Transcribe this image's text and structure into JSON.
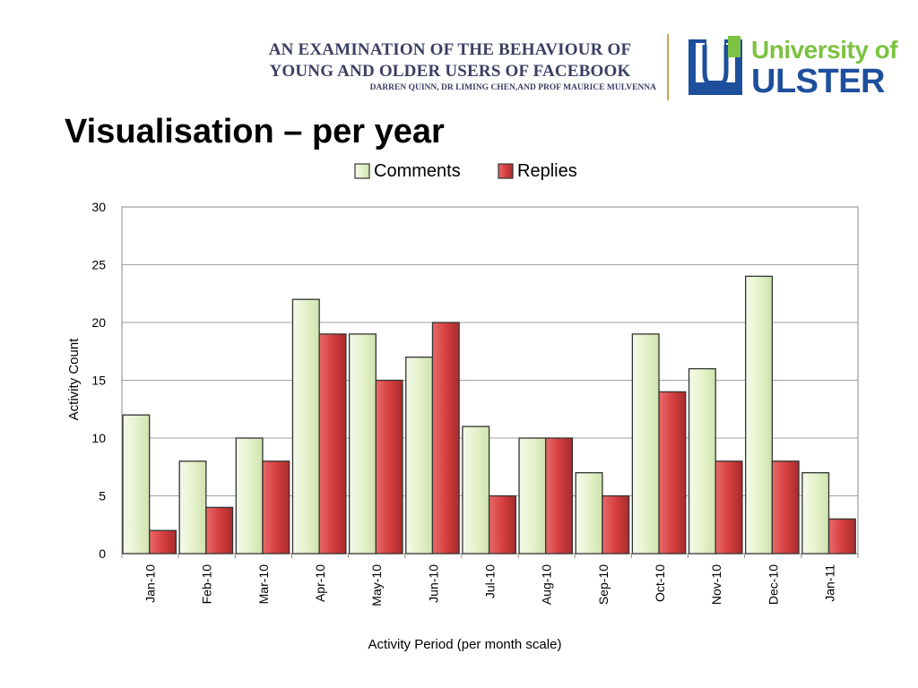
{
  "header": {
    "line1": "AN EXAMINATION OF THE BEHAVIOUR OF",
    "line2": "YOUNG AND OLDER USERS OF FACEBOOK",
    "authors": "DARREN QUINN, DR LIMING CHEN,AND PROF MAURICE MULVENNA"
  },
  "logo": {
    "line1": "University of",
    "line2": "ULSTER"
  },
  "slide": {
    "title": "Visualisation – per year"
  },
  "colors": {
    "comments_fill": "#e6f2cc",
    "replies_fill": "#d63f3f",
    "bar_stroke": "#333333",
    "grid": "#a0a0a0"
  },
  "chart_data": {
    "type": "bar",
    "title": "",
    "xlabel": "Activity Period (per month scale)",
    "ylabel": "Activity Count",
    "ylim": [
      0,
      30
    ],
    "yticks": [
      0,
      5,
      10,
      15,
      20,
      25,
      30
    ],
    "grid": true,
    "legend_position": "top",
    "categories": [
      "Jan-10",
      "Feb-10",
      "Mar-10",
      "Apr-10",
      "May-10",
      "Jun-10",
      "Jul-10",
      "Aug-10",
      "Sep-10",
      "Oct-10",
      "Nov-10",
      "Dec-10",
      "Jan-11"
    ],
    "series": [
      {
        "name": "Comments",
        "values": [
          12,
          8,
          10,
          22,
          19,
          17,
          11,
          10,
          7,
          19,
          16,
          24,
          7
        ]
      },
      {
        "name": "Replies",
        "values": [
          2,
          4,
          8,
          19,
          15,
          20,
          5,
          10,
          5,
          14,
          8,
          8,
          3
        ]
      }
    ]
  }
}
